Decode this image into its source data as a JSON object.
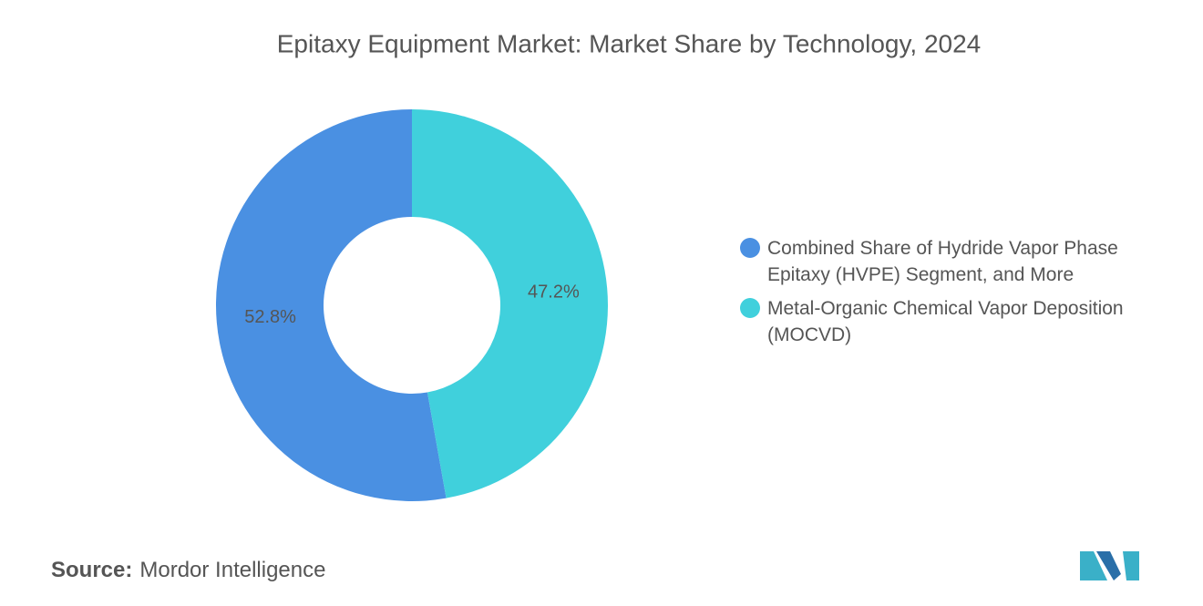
{
  "chart_data": {
    "type": "pie",
    "title": "Epitaxy Equipment Market: Market Share by Technology, 2024",
    "categories": [
      "Combined Share of Hydride Vapor Phase Epitaxy (HVPE) Segment, and More",
      "Metal-Organic Chemical Vapor Deposition (MOCVD)"
    ],
    "values": [
      52.8,
      47.2
    ],
    "value_labels": [
      "52.8%",
      "47.2%"
    ],
    "colors": [
      "#4a90e2",
      "#40d0dc"
    ],
    "donut": true,
    "legend": "right"
  },
  "footer": {
    "source_label": "Source:",
    "source": "Mordor Intelligence"
  }
}
